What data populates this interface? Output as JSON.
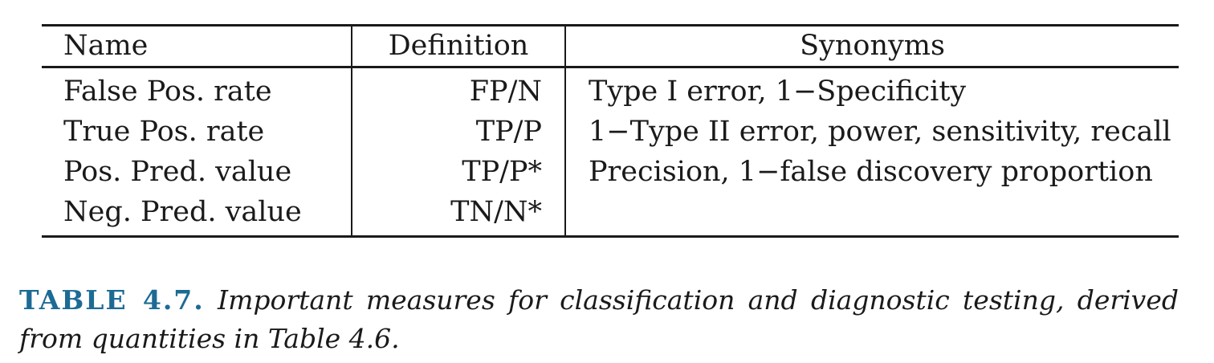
{
  "table": {
    "headers": {
      "name": "Name",
      "definition": "Definition",
      "synonyms": "Synonyms"
    },
    "rows": [
      {
        "name": "False Pos. rate",
        "definition": "FP/N",
        "synonyms": "Type I error, 1−Specificity"
      },
      {
        "name": "True Pos. rate",
        "definition": "TP/P",
        "synonyms": "1−Type II error, power, sensitivity, recall"
      },
      {
        "name": "Pos. Pred. value",
        "definition": "TP/P*",
        "synonyms": "Precision, 1−false discovery proportion"
      },
      {
        "name": "Neg. Pred. value",
        "definition": "TN/N*",
        "synonyms": ""
      }
    ]
  },
  "caption": {
    "label": "TABLE 4.7.",
    "text": "Important measures for classification and diagnostic testing, derived from quantities in Table 4.6."
  }
}
